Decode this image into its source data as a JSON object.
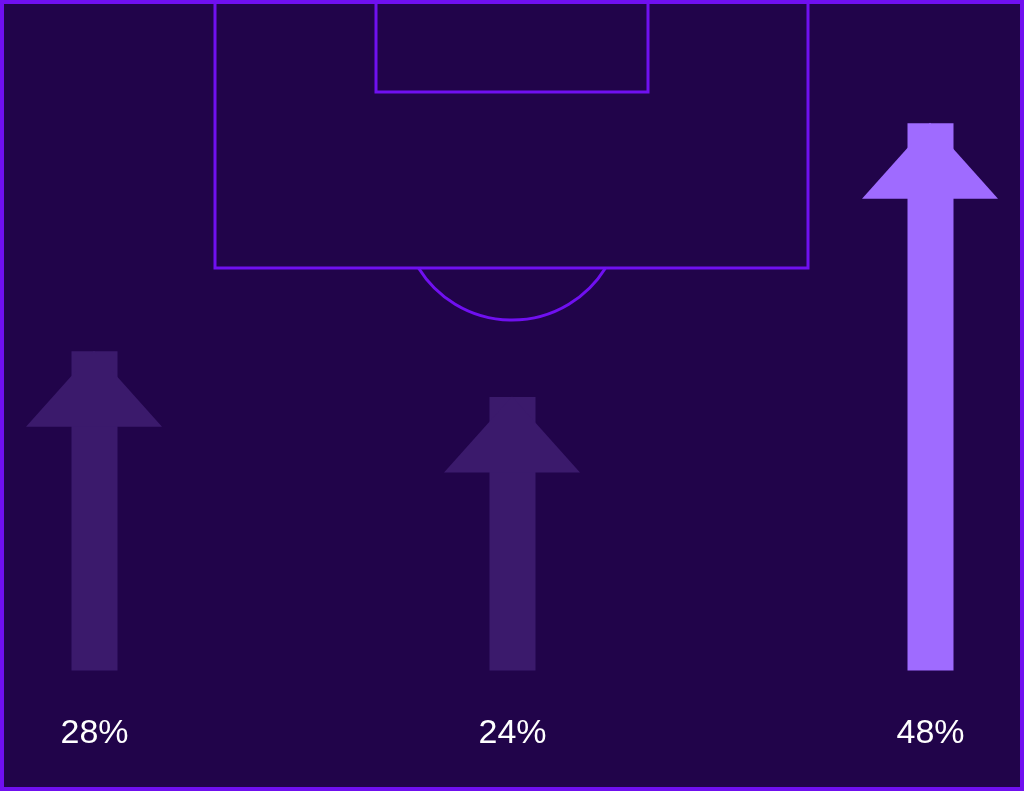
{
  "chart_data": {
    "type": "bar",
    "categories": [
      null,
      null,
      null
    ],
    "values": [
      28,
      24,
      48
    ],
    "value_labels": [
      "28%",
      "24%",
      "48%"
    ],
    "colors": [
      "#3b1a6c",
      "#3b1a6c",
      "#9f6bff"
    ]
  }
}
